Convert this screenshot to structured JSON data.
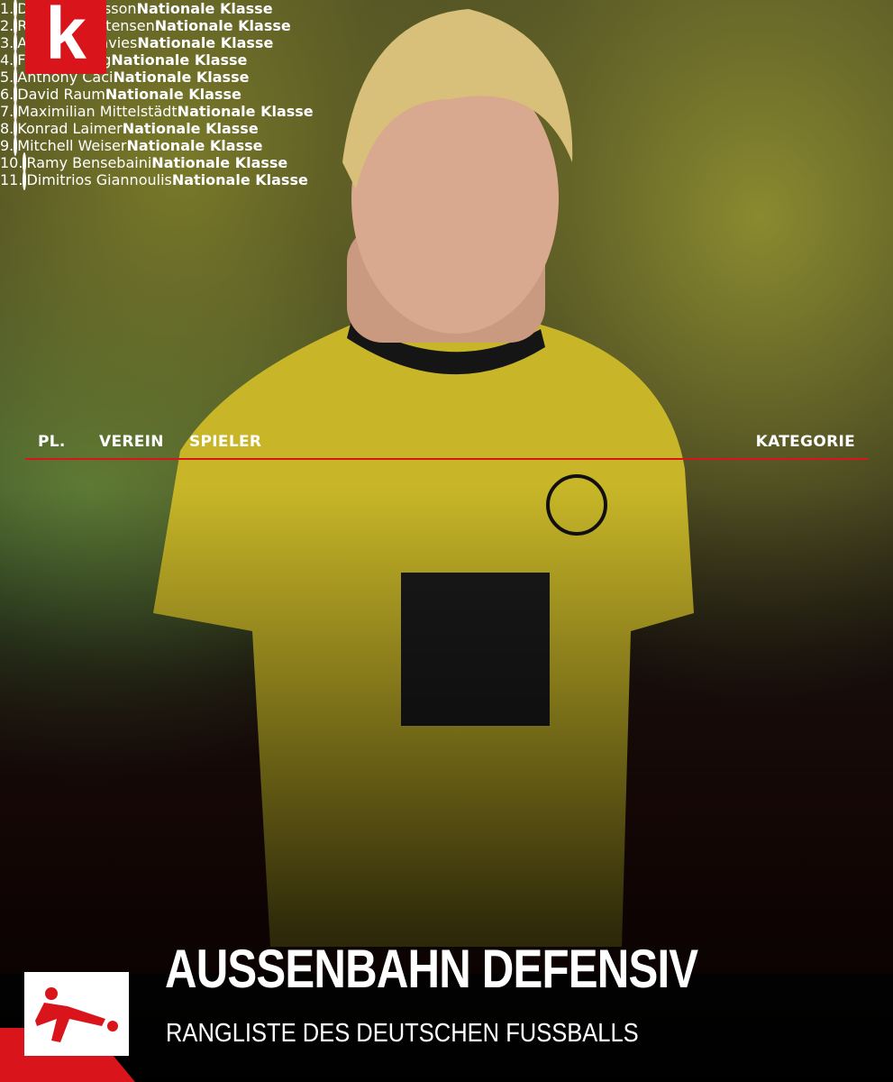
{
  "brand": {
    "logo": "k"
  },
  "table": {
    "columns": [
      "PL.",
      "VEREIN",
      "SPIELER",
      "KATEGORIE"
    ],
    "rows": [
      [
        "1.",
        "Daniel Svensson",
        "Nationale Klasse"
      ],
      [
        "2.",
        "Rasmus Kristensen",
        "Nationale Klasse"
      ],
      [
        "3.",
        "Alphonso Davies",
        "Nationale Klasse"
      ],
      [
        "4.",
        "Frans Krätzig",
        "Nationale Klasse"
      ],
      [
        "5.",
        "Anthony Caci",
        "Nationale Klasse"
      ],
      [
        "6.",
        "David Raum",
        "Nationale Klasse"
      ],
      [
        "7.",
        "Maximilian Mittelstädt",
        "Nationale Klasse"
      ],
      [
        "8.",
        "Konrad Laimer",
        "Nationale Klasse"
      ],
      [
        "9.",
        "Mitchell Weiser",
        "Nationale Klasse"
      ],
      [
        "10.",
        "Ramy Bensebaini",
        "Nationale Klasse"
      ],
      [
        "11.",
        "Dimitrios Giannoulis",
        "Nationale Klasse"
      ]
    ]
  },
  "footer": {
    "title": "AUSSENBAHN DEFENSIV",
    "subtitle": "RANGLISTE DES DEUTSCHEN FUSSBALLS"
  }
}
